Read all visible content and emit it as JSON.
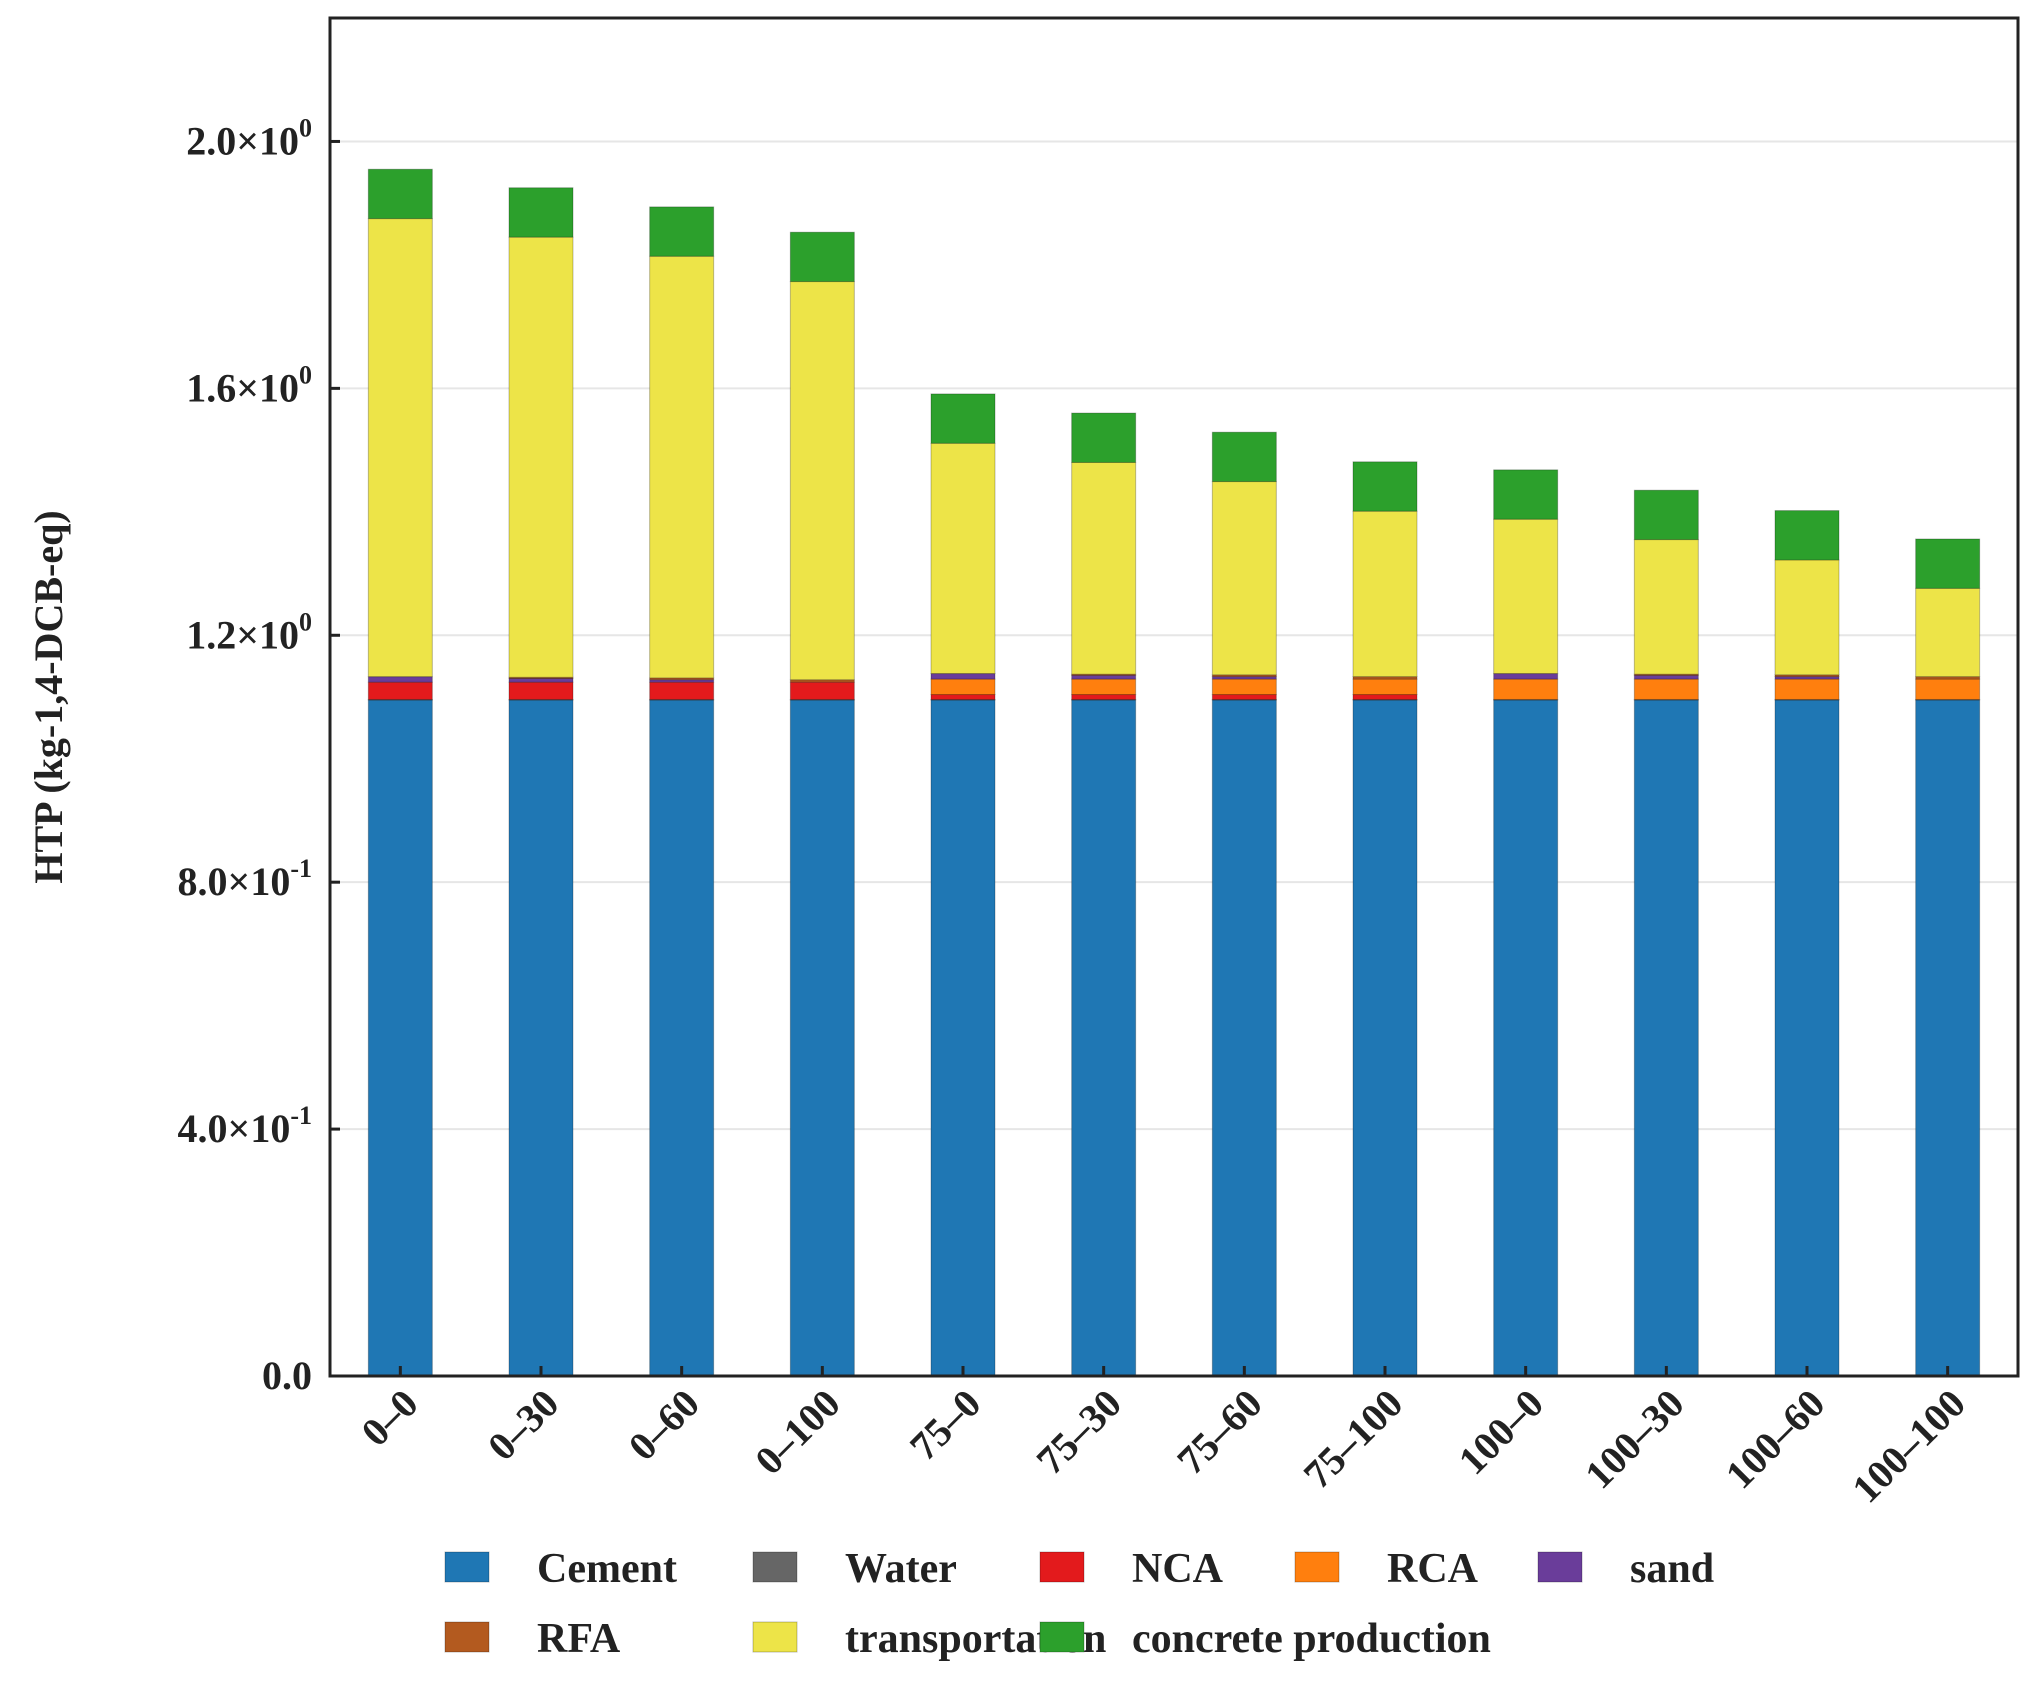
{
  "chart_data": {
    "type": "bar",
    "stacked": true,
    "title": "",
    "xlabel": "",
    "ylabel": "HTP  (kg-1,4-DCB-eq)",
    "ylim": [
      0,
      2.2
    ],
    "grid": true,
    "yticks": [
      {
        "value": 0.0,
        "mantissa": "0.0",
        "exponent": ""
      },
      {
        "value": 0.4,
        "mantissa": "4.0×10",
        "exponent": "-1"
      },
      {
        "value": 0.8,
        "mantissa": "8.0×10",
        "exponent": "-1"
      },
      {
        "value": 1.2,
        "mantissa": "1.2×10",
        "exponent": "0"
      },
      {
        "value": 1.6,
        "mantissa": "1.6×10",
        "exponent": "0"
      },
      {
        "value": 2.0,
        "mantissa": "2.0×10",
        "exponent": "0"
      }
    ],
    "categories": [
      "0–0",
      "0–30",
      "0–60",
      "0–100",
      "75–0",
      "75–30",
      "75–60",
      "75–100",
      "100–0",
      "100–30",
      "100–60",
      "100–100"
    ],
    "series": [
      {
        "name": "Cement",
        "color": "#1f77b4",
        "values": [
          1.095,
          1.095,
          1.095,
          1.095,
          1.095,
          1.095,
          1.095,
          1.095,
          1.095,
          1.095,
          1.095,
          1.095
        ]
      },
      {
        "name": "Water",
        "color": "#666666",
        "values": [
          0.001,
          0.001,
          0.001,
          0.001,
          0.001,
          0.001,
          0.001,
          0.001,
          0.001,
          0.001,
          0.001,
          0.001
        ]
      },
      {
        "name": "NCA",
        "color": "#e31a1c",
        "values": [
          0.028,
          0.028,
          0.028,
          0.028,
          0.008,
          0.008,
          0.008,
          0.008,
          0,
          0,
          0,
          0
        ]
      },
      {
        "name": "RCA",
        "color": "#ff7f0e",
        "values": [
          0,
          0,
          0,
          0,
          0.025,
          0.025,
          0.025,
          0.025,
          0.033,
          0.033,
          0.033,
          0.033
        ]
      },
      {
        "name": "sand",
        "color": "#6a3d9a",
        "values": [
          0.009,
          0.006,
          0.004,
          0,
          0.009,
          0.006,
          0.004,
          0,
          0.009,
          0.006,
          0.004,
          0
        ]
      },
      {
        "name": "RFA",
        "color": "#b35a1f",
        "values": [
          0,
          0.002,
          0.003,
          0.004,
          0,
          0.002,
          0.003,
          0.004,
          0,
          0.002,
          0.003,
          0.004
        ]
      },
      {
        "name": "transportation",
        "color": "#ede448",
        "values": [
          0.742,
          0.713,
          0.683,
          0.645,
          0.373,
          0.343,
          0.313,
          0.268,
          0.25,
          0.218,
          0.186,
          0.143
        ]
      },
      {
        "name": "concrete production",
        "color": "#2ca02c",
        "values": [
          0.08,
          0.08,
          0.08,
          0.08,
          0.08,
          0.08,
          0.08,
          0.08,
          0.08,
          0.08,
          0.08,
          0.08
        ]
      }
    ],
    "legend_position": "bottom"
  }
}
